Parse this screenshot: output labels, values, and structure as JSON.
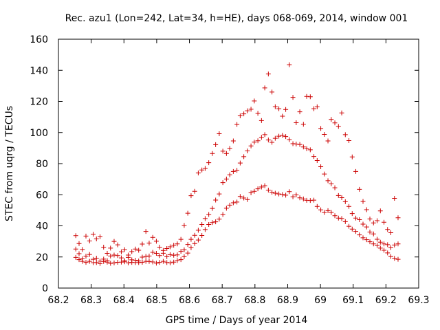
{
  "chart_data": {
    "type": "scatter",
    "title": "Rec. azu1 (Lon=242, Lat=34, h=HE), days 068-069, 2014, window 001",
    "xlabel": "GPS time / Days of year 2014",
    "ylabel": "STEC from uqrg / TECUs",
    "xlim": [
      68.2,
      69.3
    ],
    "ylim": [
      0,
      160
    ],
    "xticks": [
      68.2,
      68.3,
      68.4,
      68.5,
      68.6,
      68.7,
      68.8,
      68.9,
      69,
      69.1,
      69.2,
      69.3
    ],
    "xtick_labels": [
      "68.2",
      "68.3",
      "68.4",
      "68.5",
      "68.6",
      "68.7",
      "68.8",
      "68.9",
      "69",
      "69.1",
      "69.2",
      "69.3"
    ],
    "yticks": [
      0,
      20,
      40,
      60,
      80,
      100,
      120,
      140,
      160
    ],
    "ytick_labels": [
      "0",
      "20",
      "40",
      "60",
      "80",
      "100",
      "120",
      "140",
      "160"
    ],
    "marker": "+",
    "color": "#cc0000",
    "grid": false,
    "series": [
      {
        "name": "STEC",
        "points": [
          [
            68.253,
            33.7
          ],
          [
            68.263,
            28.6
          ],
          [
            68.273,
            24.8
          ],
          [
            68.284,
            33.4
          ],
          [
            68.295,
            30.3
          ],
          [
            68.306,
            34.6
          ],
          [
            68.316,
            31.6
          ],
          [
            68.327,
            33.0
          ],
          [
            68.338,
            26.3
          ],
          [
            68.349,
            22.3
          ],
          [
            68.359,
            25.7
          ],
          [
            68.37,
            30.0
          ],
          [
            68.381,
            27.8
          ],
          [
            68.392,
            23.3
          ],
          [
            68.402,
            24.7
          ],
          [
            68.413,
            19.7
          ],
          [
            68.424,
            23.4
          ],
          [
            68.435,
            25.1
          ],
          [
            68.445,
            24.3
          ],
          [
            68.456,
            28.3
          ],
          [
            68.467,
            36.4
          ],
          [
            68.477,
            28.9
          ],
          [
            68.488,
            32.6
          ],
          [
            68.499,
            30.1
          ],
          [
            68.509,
            26.3
          ],
          [
            68.52,
            24.2
          ],
          [
            68.531,
            25.4
          ],
          [
            68.541,
            26.5
          ],
          [
            68.552,
            27.5
          ],
          [
            68.563,
            28.4
          ],
          [
            68.574,
            31.3
          ],
          [
            68.584,
            40.3
          ],
          [
            68.595,
            48.1
          ],
          [
            68.605,
            59.4
          ],
          [
            68.616,
            62.2
          ],
          [
            68.627,
            74.0
          ],
          [
            68.638,
            75.9
          ],
          [
            68.648,
            76.9
          ],
          [
            68.659,
            80.6
          ],
          [
            68.67,
            86.5
          ],
          [
            68.68,
            92.2
          ],
          [
            68.691,
            99.2
          ],
          [
            68.702,
            88.0
          ],
          [
            68.713,
            86.5
          ],
          [
            68.723,
            89.8
          ],
          [
            68.734,
            94.6
          ],
          [
            68.745,
            105.2
          ],
          [
            68.755,
            110.7
          ],
          [
            68.766,
            112.0
          ],
          [
            68.777,
            114.0
          ],
          [
            68.788,
            115.0
          ],
          [
            68.798,
            120.3
          ],
          [
            68.809,
            112.3
          ],
          [
            68.82,
            107.7
          ],
          [
            68.83,
            128.7
          ],
          [
            68.841,
            137.6
          ],
          [
            68.852,
            126.0
          ],
          [
            68.862,
            116.6
          ],
          [
            68.873,
            115.3
          ],
          [
            68.884,
            110.5
          ],
          [
            68.894,
            114.8
          ],
          [
            68.905,
            143.6
          ],
          [
            68.916,
            122.6
          ],
          [
            68.926,
            106.3
          ],
          [
            68.937,
            113.3
          ],
          [
            68.948,
            105.3
          ],
          [
            68.958,
            123.2
          ],
          [
            68.969,
            123.0
          ],
          [
            68.98,
            115.3
          ],
          [
            68.99,
            116.5
          ],
          [
            69.001,
            102.6
          ],
          [
            69.012,
            98.8
          ],
          [
            69.023,
            94.6
          ],
          [
            69.033,
            108.4
          ],
          [
            69.044,
            106.2
          ],
          [
            69.055,
            103.9
          ],
          [
            69.065,
            112.6
          ],
          [
            69.076,
            98.6
          ],
          [
            69.087,
            94.8
          ],
          [
            69.097,
            84.3
          ],
          [
            69.108,
            75.0
          ],
          [
            69.119,
            63.5
          ],
          [
            69.13,
            55.7
          ],
          [
            69.141,
            50.4
          ],
          [
            69.151,
            44.4
          ],
          [
            69.162,
            41.9
          ],
          [
            69.173,
            43.3
          ],
          [
            69.183,
            49.6
          ],
          [
            69.194,
            42.3
          ],
          [
            69.205,
            37.7
          ],
          [
            69.215,
            35.6
          ],
          [
            69.226,
            57.7
          ],
          [
            69.237,
            45.2
          ],
          [
            68.253,
            25.1
          ],
          [
            68.263,
            22.1
          ],
          [
            68.273,
            18.8
          ],
          [
            68.284,
            20.5
          ],
          [
            68.295,
            21.6
          ],
          [
            68.306,
            18.5
          ],
          [
            68.316,
            19.2
          ],
          [
            68.327,
            17.3
          ],
          [
            68.338,
            18.6
          ],
          [
            68.349,
            17.6
          ],
          [
            68.359,
            20.6
          ],
          [
            68.37,
            21.2
          ],
          [
            68.381,
            20.9
          ],
          [
            68.392,
            19.4
          ],
          [
            68.402,
            17.6
          ],
          [
            68.413,
            21.2
          ],
          [
            68.424,
            18.2
          ],
          [
            68.435,
            17.9
          ],
          [
            68.445,
            17.4
          ],
          [
            68.456,
            19.9
          ],
          [
            68.467,
            20.4
          ],
          [
            68.477,
            20.6
          ],
          [
            68.488,
            23.0
          ],
          [
            68.499,
            22.3
          ],
          [
            68.509,
            20.9
          ],
          [
            68.52,
            22.4
          ],
          [
            68.531,
            20.2
          ],
          [
            68.541,
            21.5
          ],
          [
            68.552,
            21.1
          ],
          [
            68.563,
            21.3
          ],
          [
            68.574,
            23.6
          ],
          [
            68.584,
            24.6
          ],
          [
            68.595,
            28.0
          ],
          [
            68.605,
            31.3
          ],
          [
            68.616,
            33.9
          ],
          [
            68.627,
            37.2
          ],
          [
            68.638,
            40.9
          ],
          [
            68.648,
            44.7
          ],
          [
            68.659,
            47.3
          ],
          [
            68.67,
            51.2
          ],
          [
            68.68,
            56.6
          ],
          [
            68.691,
            60.5
          ],
          [
            68.702,
            67.8
          ],
          [
            68.713,
            70.1
          ],
          [
            68.723,
            72.8
          ],
          [
            68.734,
            75.0
          ],
          [
            68.745,
            75.7
          ],
          [
            68.755,
            80.4
          ],
          [
            68.766,
            84.5
          ],
          [
            68.777,
            88.2
          ],
          [
            68.788,
            91.4
          ],
          [
            68.798,
            93.8
          ],
          [
            68.809,
            94.7
          ],
          [
            68.82,
            96.9
          ],
          [
            68.83,
            98.6
          ],
          [
            68.841,
            95.2
          ],
          [
            68.852,
            93.7
          ],
          [
            68.862,
            96.3
          ],
          [
            68.873,
            97.6
          ],
          [
            68.884,
            98.2
          ],
          [
            68.894,
            97.4
          ],
          [
            68.905,
            95.4
          ],
          [
            68.916,
            92.8
          ],
          [
            68.926,
            92.6
          ],
          [
            68.937,
            92.3
          ],
          [
            68.948,
            90.7
          ],
          [
            68.958,
            89.6
          ],
          [
            68.969,
            88.9
          ],
          [
            68.98,
            84.6
          ],
          [
            68.99,
            82.0
          ],
          [
            69.001,
            78.0
          ],
          [
            69.012,
            73.3
          ],
          [
            69.023,
            69.0
          ],
          [
            69.033,
            67.0
          ],
          [
            69.044,
            64.5
          ],
          [
            69.055,
            59.5
          ],
          [
            69.065,
            58.1
          ],
          [
            69.076,
            55.5
          ],
          [
            69.087,
            52.5
          ],
          [
            69.097,
            47.9
          ],
          [
            69.108,
            45.0
          ],
          [
            69.119,
            44.0
          ],
          [
            69.13,
            41.1
          ],
          [
            69.141,
            39.3
          ],
          [
            69.151,
            36.0
          ],
          [
            69.162,
            34.8
          ],
          [
            69.173,
            31.4
          ],
          [
            69.183,
            29.5
          ],
          [
            69.194,
            28.4
          ],
          [
            69.205,
            27.9
          ],
          [
            69.215,
            26.0
          ],
          [
            69.226,
            27.7
          ],
          [
            69.237,
            28.4
          ],
          [
            68.253,
            19.7
          ],
          [
            68.263,
            18.3
          ],
          [
            68.273,
            17.2
          ],
          [
            68.284,
            16.5
          ],
          [
            68.295,
            17.2
          ],
          [
            68.306,
            16.3
          ],
          [
            68.316,
            16.4
          ],
          [
            68.327,
            15.8
          ],
          [
            68.338,
            17.1
          ],
          [
            68.349,
            16.7
          ],
          [
            68.359,
            15.9
          ],
          [
            68.37,
            16.2
          ],
          [
            68.381,
            16.6
          ],
          [
            68.392,
            16.7
          ],
          [
            68.402,
            16.9
          ],
          [
            68.413,
            16.2
          ],
          [
            68.424,
            16.5
          ],
          [
            68.435,
            16.4
          ],
          [
            68.445,
            16.4
          ],
          [
            68.456,
            16.6
          ],
          [
            68.467,
            17.2
          ],
          [
            68.477,
            17.1
          ],
          [
            68.488,
            16.8
          ],
          [
            68.499,
            16.0
          ],
          [
            68.509,
            16.5
          ],
          [
            68.52,
            17.2
          ],
          [
            68.531,
            16.4
          ],
          [
            68.541,
            16.2
          ],
          [
            68.552,
            16.7
          ],
          [
            68.563,
            17.7
          ],
          [
            68.574,
            18.3
          ],
          [
            68.584,
            20.2
          ],
          [
            68.595,
            22.5
          ],
          [
            68.605,
            25.9
          ],
          [
            68.616,
            28.6
          ],
          [
            68.627,
            30.9
          ],
          [
            68.638,
            33.8
          ],
          [
            68.648,
            37.6
          ],
          [
            68.659,
            40.9
          ],
          [
            68.67,
            42.1
          ],
          [
            68.68,
            42.6
          ],
          [
            68.691,
            44.3
          ],
          [
            68.702,
            47.3
          ],
          [
            68.713,
            51.3
          ],
          [
            68.723,
            53.3
          ],
          [
            68.734,
            54.8
          ],
          [
            68.745,
            55.3
          ],
          [
            68.755,
            58.9
          ],
          [
            68.766,
            57.9
          ],
          [
            68.777,
            56.9
          ],
          [
            68.788,
            61.2
          ],
          [
            68.798,
            62.2
          ],
          [
            68.809,
            63.8
          ],
          [
            68.82,
            65.0
          ],
          [
            68.83,
            65.8
          ],
          [
            68.841,
            63.0
          ],
          [
            68.852,
            61.6
          ],
          [
            68.862,
            61.0
          ],
          [
            68.873,
            60.5
          ],
          [
            68.884,
            60.1
          ],
          [
            68.894,
            59.7
          ],
          [
            68.905,
            62.0
          ],
          [
            68.916,
            58.7
          ],
          [
            68.926,
            59.9
          ],
          [
            68.937,
            58.0
          ],
          [
            68.948,
            57.3
          ],
          [
            68.958,
            56.4
          ],
          [
            68.969,
            56.3
          ],
          [
            68.98,
            56.5
          ],
          [
            68.99,
            52.5
          ],
          [
            69.001,
            50.3
          ],
          [
            69.012,
            48.6
          ],
          [
            69.023,
            49.8
          ],
          [
            69.033,
            48.6
          ],
          [
            69.044,
            46.5
          ],
          [
            69.055,
            45.0
          ],
          [
            69.065,
            44.7
          ],
          [
            69.076,
            42.7
          ],
          [
            69.087,
            39.7
          ],
          [
            69.097,
            37.9
          ],
          [
            69.108,
            36.4
          ],
          [
            69.119,
            34.2
          ],
          [
            69.13,
            32.3
          ],
          [
            69.141,
            31.1
          ],
          [
            69.151,
            29.8
          ],
          [
            69.162,
            28.4
          ],
          [
            69.173,
            27.4
          ],
          [
            69.183,
            25.7
          ],
          [
            69.194,
            24.3
          ],
          [
            69.205,
            22.6
          ],
          [
            69.215,
            20.3
          ],
          [
            69.226,
            19.1
          ],
          [
            69.237,
            18.5
          ]
        ]
      }
    ]
  }
}
